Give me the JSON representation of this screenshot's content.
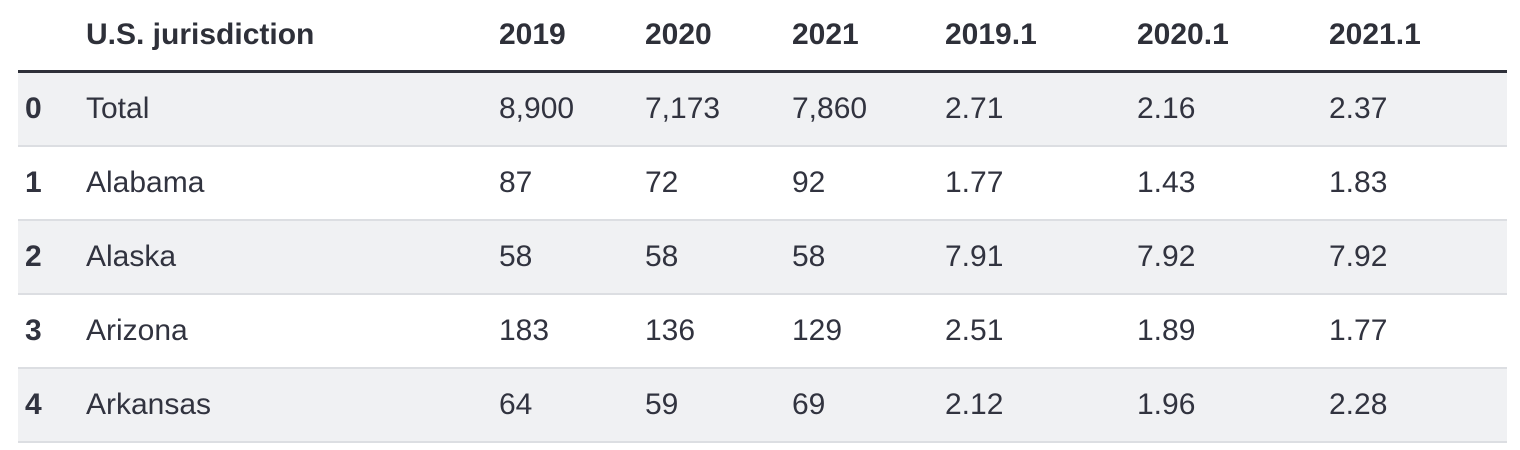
{
  "colors": {
    "page_bg": "#ffffff",
    "text": "#31333f",
    "stripe_row_bg": "#f0f1f3",
    "header_rule": "#2e3039",
    "row_rule": "#dcdee2"
  },
  "chart_data": {
    "type": "table",
    "title": "",
    "header": [
      "",
      "U.S. jurisdiction",
      "2019",
      "2020",
      "2021",
      "2019.1",
      "2020.1",
      "2021.1"
    ],
    "rows": [
      [
        "0",
        "Total",
        "8,900",
        "7,173",
        "7,860",
        "2.71",
        "2.16",
        "2.37"
      ],
      [
        "1",
        "Alabama",
        "87",
        "72",
        "92",
        "1.77",
        "1.43",
        "1.83"
      ],
      [
        "2",
        "Alaska",
        "58",
        "58",
        "58",
        "7.91",
        "7.92",
        "7.92"
      ],
      [
        "3",
        "Arizona",
        "183",
        "136",
        "129",
        "2.51",
        "1.89",
        "1.77"
      ],
      [
        "4",
        "Arkansas",
        "64",
        "59",
        "69",
        "2.12",
        "1.96",
        "2.28"
      ]
    ]
  }
}
